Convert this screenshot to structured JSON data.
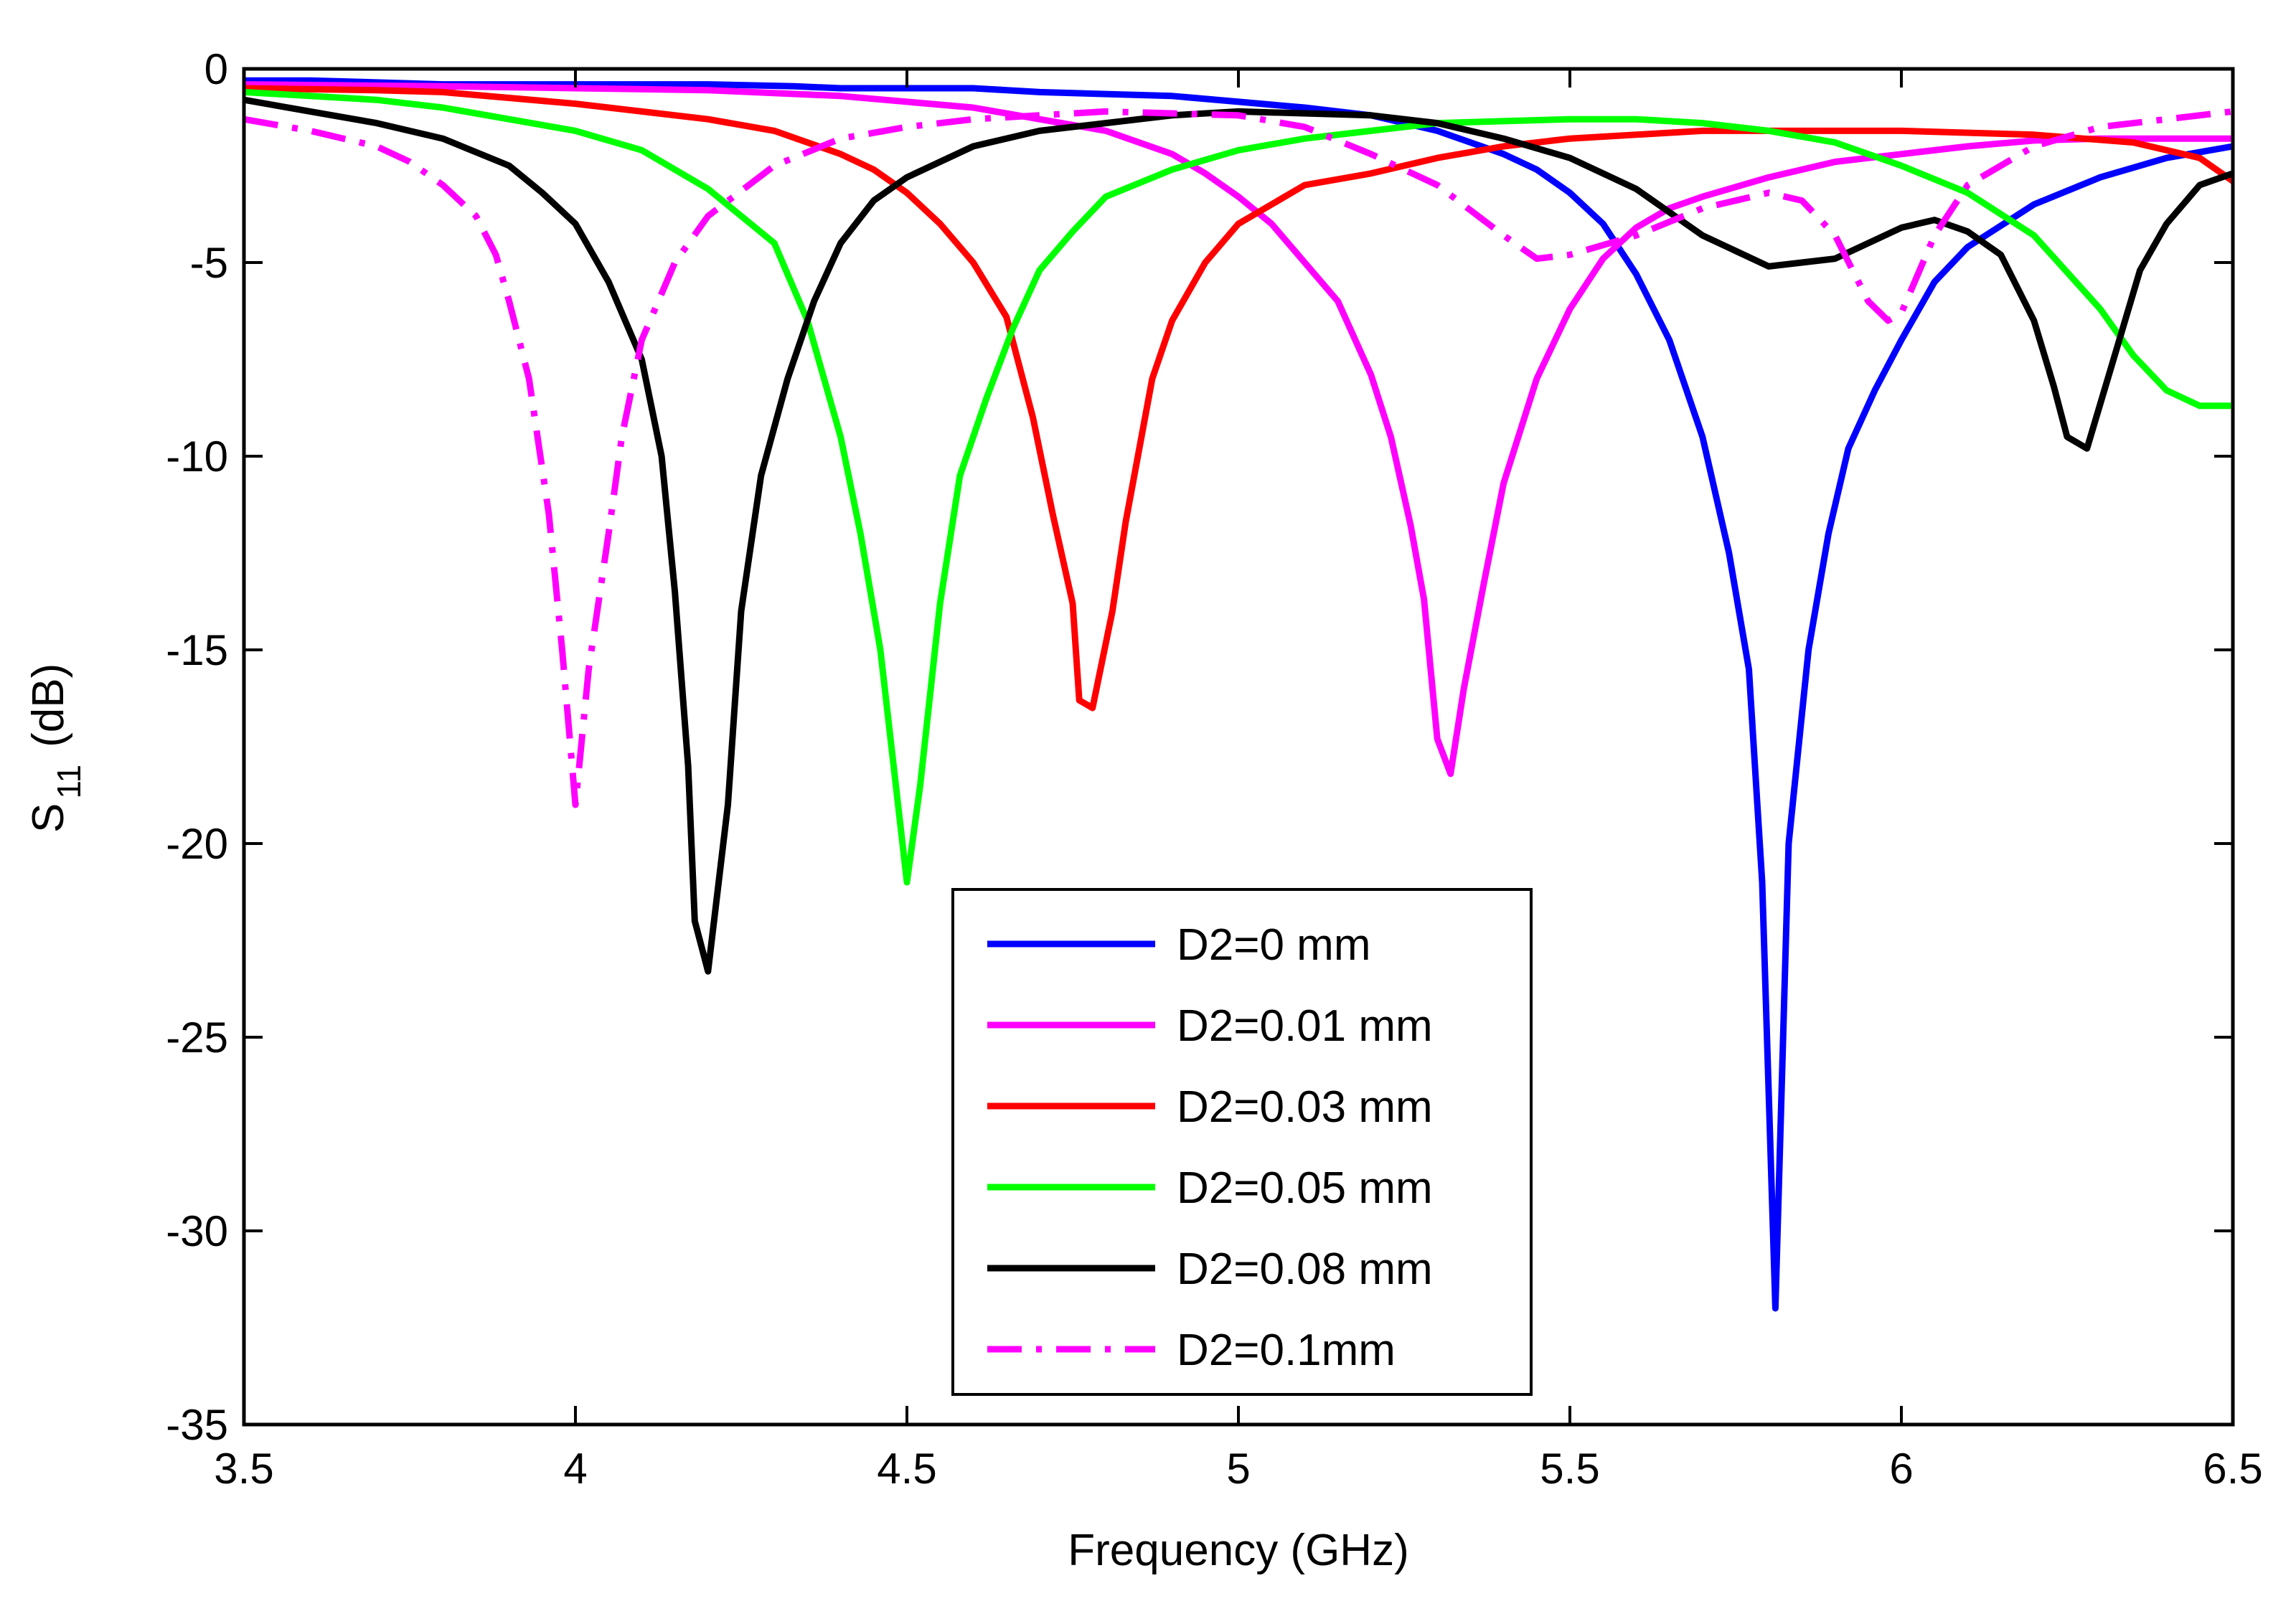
{
  "chart_data": {
    "type": "line",
    "title": "",
    "xlabel": "Frequency (GHz)",
    "ylabel_main": "S",
    "ylabel_sub": "11",
    "ylabel_unit": "(dB)",
    "xlim": [
      3.5,
      6.5
    ],
    "ylim": [
      -35,
      0
    ],
    "xticks": [
      3.5,
      4,
      4.5,
      5,
      5.5,
      6,
      6.5
    ],
    "xtick_labels": [
      "3.5",
      "4",
      "4.5",
      "5",
      "5.5",
      "6",
      "6.5"
    ],
    "yticks": [
      0,
      -5,
      -10,
      -15,
      -20,
      -25,
      -30,
      -35
    ],
    "ytick_labels": [
      "0",
      "-5",
      "-10",
      "-15",
      "-20",
      "-25",
      "-30",
      "-35"
    ],
    "grid": false,
    "legend_position": "bottom-center",
    "series": [
      {
        "name": "D2=0 mm",
        "color": "#0000ff",
        "dash": "solid",
        "points": [
          [
            3.5,
            -0.3
          ],
          [
            3.6,
            -0.3
          ],
          [
            3.8,
            -0.4
          ],
          [
            4.0,
            -0.4
          ],
          [
            4.2,
            -0.4
          ],
          [
            4.33,
            -0.45
          ],
          [
            4.4,
            -0.5
          ],
          [
            4.6,
            -0.5
          ],
          [
            4.7,
            -0.6
          ],
          [
            4.9,
            -0.7
          ],
          [
            5.0,
            -0.85
          ],
          [
            5.1,
            -1.0
          ],
          [
            5.2,
            -1.2
          ],
          [
            5.3,
            -1.6
          ],
          [
            5.4,
            -2.2
          ],
          [
            5.45,
            -2.6
          ],
          [
            5.5,
            -3.2
          ],
          [
            5.55,
            -4.0
          ],
          [
            5.6,
            -5.3
          ],
          [
            5.65,
            -7.0
          ],
          [
            5.7,
            -9.5
          ],
          [
            5.74,
            -12.5
          ],
          [
            5.77,
            -15.5
          ],
          [
            5.79,
            -21.0
          ],
          [
            5.81,
            -32.0
          ],
          [
            5.83,
            -20.0
          ],
          [
            5.86,
            -15.0
          ],
          [
            5.89,
            -12.0
          ],
          [
            5.92,
            -9.8
          ],
          [
            5.96,
            -8.3
          ],
          [
            6.0,
            -7.0
          ],
          [
            6.05,
            -5.5
          ],
          [
            6.1,
            -4.6
          ],
          [
            6.2,
            -3.5
          ],
          [
            6.3,
            -2.8
          ],
          [
            6.4,
            -2.3
          ],
          [
            6.5,
            -2.0
          ]
        ]
      },
      {
        "name": "D2=0.01 mm",
        "color": "#ff00ff",
        "dash": "solid",
        "points": [
          [
            3.5,
            -0.4
          ],
          [
            3.8,
            -0.45
          ],
          [
            4.0,
            -0.5
          ],
          [
            4.2,
            -0.55
          ],
          [
            4.4,
            -0.7
          ],
          [
            4.6,
            -1.0
          ],
          [
            4.8,
            -1.6
          ],
          [
            4.9,
            -2.2
          ],
          [
            4.95,
            -2.7
          ],
          [
            5.0,
            -3.3
          ],
          [
            5.05,
            -4.0
          ],
          [
            5.1,
            -5.0
          ],
          [
            5.15,
            -6.0
          ],
          [
            5.2,
            -7.9
          ],
          [
            5.23,
            -9.5
          ],
          [
            5.26,
            -11.8
          ],
          [
            5.28,
            -13.7
          ],
          [
            5.3,
            -17.3
          ],
          [
            5.32,
            -18.2
          ],
          [
            5.34,
            -16.0
          ],
          [
            5.37,
            -13.3
          ],
          [
            5.4,
            -10.7
          ],
          [
            5.45,
            -8.0
          ],
          [
            5.5,
            -6.2
          ],
          [
            5.55,
            -4.9
          ],
          [
            5.6,
            -4.1
          ],
          [
            5.65,
            -3.6
          ],
          [
            5.7,
            -3.3
          ],
          [
            5.8,
            -2.8
          ],
          [
            5.9,
            -2.4
          ],
          [
            6.0,
            -2.2
          ],
          [
            6.1,
            -2.0
          ],
          [
            6.2,
            -1.85
          ],
          [
            6.3,
            -1.8
          ],
          [
            6.5,
            -1.8
          ]
        ]
      },
      {
        "name": "D2=0.03 mm",
        "color": "#ff0000",
        "dash": "solid",
        "points": [
          [
            3.5,
            -0.5
          ],
          [
            3.7,
            -0.55
          ],
          [
            3.8,
            -0.6
          ],
          [
            3.9,
            -0.75
          ],
          [
            4.0,
            -0.9
          ],
          [
            4.1,
            -1.1
          ],
          [
            4.2,
            -1.3
          ],
          [
            4.3,
            -1.6
          ],
          [
            4.4,
            -2.2
          ],
          [
            4.45,
            -2.6
          ],
          [
            4.5,
            -3.2
          ],
          [
            4.55,
            -4.0
          ],
          [
            4.6,
            -5.0
          ],
          [
            4.65,
            -6.4
          ],
          [
            4.69,
            -9.0
          ],
          [
            4.72,
            -11.5
          ],
          [
            4.75,
            -13.8
          ],
          [
            4.76,
            -16.3
          ],
          [
            4.78,
            -16.5
          ],
          [
            4.81,
            -14.0
          ],
          [
            4.83,
            -11.7
          ],
          [
            4.87,
            -8.0
          ],
          [
            4.9,
            -6.5
          ],
          [
            4.95,
            -5.0
          ],
          [
            5.0,
            -4.0
          ],
          [
            5.1,
            -3.0
          ],
          [
            5.2,
            -2.7
          ],
          [
            5.3,
            -2.3
          ],
          [
            5.4,
            -2.0
          ],
          [
            5.5,
            -1.8
          ],
          [
            5.7,
            -1.6
          ],
          [
            6.0,
            -1.6
          ],
          [
            6.2,
            -1.7
          ],
          [
            6.35,
            -1.9
          ],
          [
            6.45,
            -2.3
          ],
          [
            6.5,
            -2.9
          ]
        ]
      },
      {
        "name": "D2=0.05 mm",
        "color": "#00ff00",
        "dash": "solid",
        "points": [
          [
            3.5,
            -0.6
          ],
          [
            3.6,
            -0.7
          ],
          [
            3.7,
            -0.8
          ],
          [
            3.8,
            -1.0
          ],
          [
            3.9,
            -1.3
          ],
          [
            4.0,
            -1.6
          ],
          [
            4.1,
            -2.1
          ],
          [
            4.15,
            -2.6
          ],
          [
            4.2,
            -3.1
          ],
          [
            4.25,
            -3.8
          ],
          [
            4.3,
            -4.5
          ],
          [
            4.35,
            -6.5
          ],
          [
            4.4,
            -9.5
          ],
          [
            4.43,
            -12.0
          ],
          [
            4.46,
            -15.0
          ],
          [
            4.48,
            -18.0
          ],
          [
            4.5,
            -21.0
          ],
          [
            4.52,
            -18.5
          ],
          [
            4.55,
            -13.8
          ],
          [
            4.58,
            -10.5
          ],
          [
            4.62,
            -8.5
          ],
          [
            4.66,
            -6.7
          ],
          [
            4.7,
            -5.2
          ],
          [
            4.75,
            -4.2
          ],
          [
            4.8,
            -3.3
          ],
          [
            4.9,
            -2.6
          ],
          [
            5.0,
            -2.1
          ],
          [
            5.1,
            -1.8
          ],
          [
            5.2,
            -1.6
          ],
          [
            5.3,
            -1.4
          ],
          [
            5.5,
            -1.3
          ],
          [
            5.6,
            -1.3
          ],
          [
            5.7,
            -1.4
          ],
          [
            5.8,
            -1.6
          ],
          [
            5.9,
            -1.9
          ],
          [
            6.0,
            -2.5
          ],
          [
            6.1,
            -3.2
          ],
          [
            6.2,
            -4.3
          ],
          [
            6.3,
            -6.2
          ],
          [
            6.35,
            -7.4
          ],
          [
            6.4,
            -8.3
          ],
          [
            6.45,
            -8.7
          ],
          [
            6.5,
            -8.7
          ]
        ]
      },
      {
        "name": "D2=0.08 mm",
        "color": "#000000",
        "dash": "solid",
        "points": [
          [
            3.5,
            -0.8
          ],
          [
            3.6,
            -1.1
          ],
          [
            3.7,
            -1.4
          ],
          [
            3.8,
            -1.8
          ],
          [
            3.9,
            -2.5
          ],
          [
            3.95,
            -3.2
          ],
          [
            4.0,
            -4.0
          ],
          [
            4.05,
            -5.5
          ],
          [
            4.1,
            -7.5
          ],
          [
            4.13,
            -10.0
          ],
          [
            4.15,
            -13.5
          ],
          [
            4.17,
            -18.0
          ],
          [
            4.18,
            -22.0
          ],
          [
            4.2,
            -23.3
          ],
          [
            4.23,
            -19.0
          ],
          [
            4.25,
            -14.0
          ],
          [
            4.28,
            -10.5
          ],
          [
            4.32,
            -8.0
          ],
          [
            4.36,
            -6.0
          ],
          [
            4.4,
            -4.5
          ],
          [
            4.45,
            -3.4
          ],
          [
            4.5,
            -2.8
          ],
          [
            4.6,
            -2.0
          ],
          [
            4.7,
            -1.6
          ],
          [
            4.8,
            -1.4
          ],
          [
            4.9,
            -1.2
          ],
          [
            5.0,
            -1.1
          ],
          [
            5.2,
            -1.2
          ],
          [
            5.3,
            -1.4
          ],
          [
            5.4,
            -1.8
          ],
          [
            5.5,
            -2.3
          ],
          [
            5.6,
            -3.1
          ],
          [
            5.7,
            -4.3
          ],
          [
            5.8,
            -5.1
          ],
          [
            5.9,
            -4.9
          ],
          [
            6.0,
            -4.1
          ],
          [
            6.05,
            -3.9
          ],
          [
            6.1,
            -4.2
          ],
          [
            6.15,
            -4.8
          ],
          [
            6.2,
            -6.5
          ],
          [
            6.23,
            -8.2
          ],
          [
            6.25,
            -9.5
          ],
          [
            6.28,
            -9.8
          ],
          [
            6.32,
            -7.5
          ],
          [
            6.36,
            -5.2
          ],
          [
            6.4,
            -4.0
          ],
          [
            6.45,
            -3.0
          ],
          [
            6.5,
            -2.7
          ]
        ]
      },
      {
        "name": "D2=0.1mm",
        "color": "#ff00ff",
        "dash": "dashdot",
        "points": [
          [
            3.5,
            -1.3
          ],
          [
            3.6,
            -1.6
          ],
          [
            3.7,
            -2.0
          ],
          [
            3.75,
            -2.4
          ],
          [
            3.8,
            -3.0
          ],
          [
            3.85,
            -3.8
          ],
          [
            3.88,
            -4.8
          ],
          [
            3.9,
            -6.0
          ],
          [
            3.93,
            -8.0
          ],
          [
            3.96,
            -11.5
          ],
          [
            3.98,
            -15.0
          ],
          [
            4.0,
            -19.0
          ],
          [
            4.02,
            -15.5
          ],
          [
            4.05,
            -12.0
          ],
          [
            4.07,
            -9.5
          ],
          [
            4.1,
            -7.0
          ],
          [
            4.15,
            -5.0
          ],
          [
            4.2,
            -3.8
          ],
          [
            4.3,
            -2.5
          ],
          [
            4.4,
            -1.8
          ],
          [
            4.5,
            -1.5
          ],
          [
            4.6,
            -1.3
          ],
          [
            4.7,
            -1.2
          ],
          [
            4.8,
            -1.1
          ],
          [
            5.0,
            -1.2
          ],
          [
            5.1,
            -1.5
          ],
          [
            5.2,
            -2.2
          ],
          [
            5.3,
            -3.0
          ],
          [
            5.4,
            -4.3
          ],
          [
            5.45,
            -4.9
          ],
          [
            5.5,
            -4.8
          ],
          [
            5.6,
            -4.3
          ],
          [
            5.7,
            -3.6
          ],
          [
            5.8,
            -3.2
          ],
          [
            5.85,
            -3.4
          ],
          [
            5.9,
            -4.3
          ],
          [
            5.95,
            -6.0
          ],
          [
            5.98,
            -6.5
          ],
          [
            6.0,
            -6.3
          ],
          [
            6.05,
            -4.3
          ],
          [
            6.1,
            -3.0
          ],
          [
            6.2,
            -2.0
          ],
          [
            6.3,
            -1.5
          ],
          [
            6.4,
            -1.3
          ],
          [
            6.5,
            -1.1
          ]
        ]
      }
    ]
  }
}
